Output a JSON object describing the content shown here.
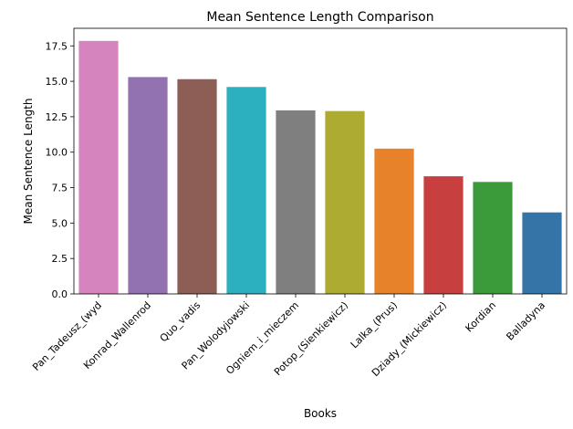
{
  "chart_data": {
    "type": "bar",
    "title": "Mean Sentence Length Comparison",
    "xlabel": "Books",
    "ylabel": "Mean Sentence Length",
    "categories": [
      "Pan_Tadeusz_(wyd",
      "Konrad_Wallenrod",
      "Quo_vadis",
      "Pan_Wolodyjowski",
      "Ogniem_i_mieczem",
      "Potop_(Sienkiewicz)",
      "Lalka_(Prus)",
      "Dziady_(Mickiewicz)",
      "Kordian",
      "Balladyna"
    ],
    "values": [
      17.85,
      15.3,
      15.15,
      14.6,
      12.95,
      12.9,
      10.25,
      8.3,
      7.9,
      5.75
    ],
    "colors": [
      "#d684bd",
      "#9372b2",
      "#8c5e55",
      "#2cb0bf",
      "#7f7f7f",
      "#aeab33",
      "#e7822a",
      "#c73f3e",
      "#3b9b3b",
      "#3474a6"
    ],
    "ylim": [
      0,
      18.74
    ],
    "yticks": [
      "0.0",
      "2.5",
      "5.0",
      "7.5",
      "10.0",
      "12.5",
      "15.0",
      "17.5"
    ],
    "grid": false,
    "legend": "none"
  }
}
